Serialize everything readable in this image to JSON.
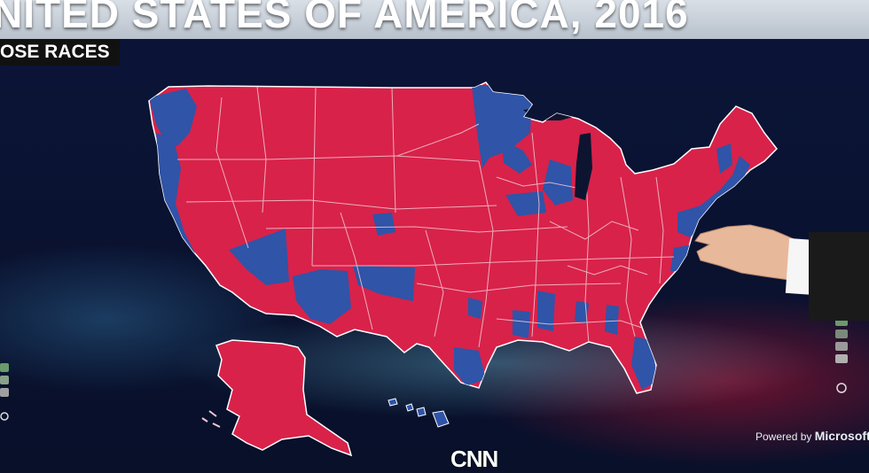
{
  "broadcast": {
    "title": "NITED STATES OF AMERICA, 2016",
    "subtitle": "OSE RACES",
    "powered_by_prefix": "Powered by",
    "powered_by_brand": "Microsoft",
    "network_logo": "CNN"
  },
  "map": {
    "colors": {
      "republican": "#d8224a",
      "democrat": "#2f54a8",
      "border": "#f3c6d2",
      "water": "#101b3e"
    },
    "regions_shown": [
      "contiguous-us",
      "alaska",
      "hawaii"
    ]
  },
  "icons": [
    "cnn-logo-icon",
    "hand-pointer-icon",
    "side-control-icon"
  ]
}
